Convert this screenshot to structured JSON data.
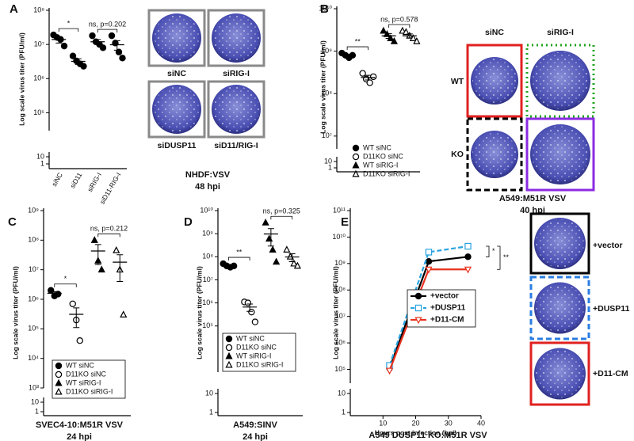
{
  "chart_data": [
    {
      "panel": "A",
      "type": "dot",
      "ylabel": "Log scale virus titer (PFU/ml)",
      "categories": [
        "siNC",
        "siD11",
        "siRIG-I",
        "siD11-RIG-I"
      ],
      "series": [
        {
          "marker": "circle",
          "filled": true,
          "color": "#000000",
          "values": [
            19000000,
            16000000,
            14000000,
            9000000
          ],
          "mean": 14000000,
          "error": 3000000
        },
        {
          "marker": "circle",
          "filled": true,
          "color": "#000000",
          "values": [
            4600000,
            3300000,
            2700000,
            2300000
          ],
          "mean": 3200000,
          "error": 600000
        },
        {
          "marker": "circle",
          "filled": true,
          "color": "#000000",
          "values": [
            18000000,
            12000000,
            10000000,
            8000000
          ],
          "mean": 12000000,
          "error": 2000000
        },
        {
          "marker": "circle",
          "filled": true,
          "color": "#000000",
          "values": [
            18000000,
            11000000,
            6000000,
            4000000
          ],
          "mean": 9800000,
          "error": 3000000
        }
      ],
      "annotations": [
        "*",
        "ns, p=0.202"
      ],
      "ylim": [
        30000,
        100000000
      ],
      "yticks": [
        {
          "value": 100000000,
          "label": "10⁸"
        },
        {
          "value": 10000000,
          "label": "10⁷"
        },
        {
          "value": 1000000,
          "label": "10⁶"
        },
        {
          "value": 100000,
          "label": "10⁵"
        },
        10,
        1
      ],
      "plate_labels": [
        "siNC",
        "siRIG-I",
        "siDUSP11",
        "siD11/RIG-I"
      ],
      "caption": [
        "NHDF:VSV",
        "48 hpi"
      ]
    },
    {
      "panel": "B",
      "type": "dot",
      "ylabel": "Log scale virus titer (PFU/ml)",
      "series": [
        {
          "name": "WT siNC",
          "marker": "circle",
          "filled": true,
          "color": "#000000",
          "values": [
            900000000,
            800000000,
            700000000,
            800000000
          ],
          "mean": 800000000,
          "error": 50000000
        },
        {
          "name": "D11KO siNC",
          "marker": "circle",
          "filled": false,
          "color": "#000000",
          "values": [
            300000000,
            220000000,
            180000000,
            250000000
          ],
          "mean": 240000000,
          "error": 30000000
        },
        {
          "name": "WT siRIG-I",
          "marker": "triangle",
          "filled": true,
          "color": "#000000",
          "values": [
            3000000000,
            2500000000,
            2000000000,
            1700000000
          ],
          "mean": 2300000000,
          "error": 300000000
        },
        {
          "name": "D11KO siRIG-I",
          "marker": "triangle",
          "filled": false,
          "color": "#000000",
          "values": [
            3000000000,
            2800000000,
            2300000000,
            2000000000,
            1700000000
          ],
          "mean": 2300000000,
          "error": 250000000
        }
      ],
      "annotations": [
        "**",
        "ns, p=0.578"
      ],
      "ylim": [
        5000000,
        10000000000
      ],
      "yticks": [
        {
          "value": 10000000000,
          "label": "10¹⁰"
        },
        {
          "value": 1000000000,
          "label": "10⁹"
        },
        {
          "value": 100000000,
          "label": "10⁸"
        },
        {
          "value": 10000000,
          "label": "10⁷"
        },
        10,
        1
      ],
      "plate_labels": [
        "siNC",
        "siRIG-I",
        "WT",
        "KO"
      ],
      "caption": [
        "A549:M51R VSV",
        "40 hpi"
      ]
    },
    {
      "panel": "C",
      "type": "dot",
      "ylabel": "Log scale virus titer (PFU/ml)",
      "series": [
        {
          "name": "WT siNC",
          "marker": "circle",
          "filled": true,
          "color": "#000000",
          "values": [
            2000000,
            1300000,
            1500000
          ],
          "mean": 1600000,
          "error": 200000
        },
        {
          "name": "D11KO siNC",
          "marker": "circle",
          "filled": false,
          "color": "#000000",
          "values": [
            700000,
            200000,
            40000
          ],
          "mean": 310000,
          "error": 200000
        },
        {
          "name": "WT siRIG-I",
          "marker": "triangle",
          "filled": true,
          "color": "#000000",
          "values": [
            100000000,
            20000000,
            10000000
          ],
          "mean": 43000000,
          "error": 28000000
        },
        {
          "name": "D11KO siRIG-I",
          "marker": "triangle",
          "filled": false,
          "color": "#000000",
          "values": [
            45000000,
            10000000,
            300000
          ],
          "mean": 18000000,
          "error": 14000000
        }
      ],
      "annotations": [
        "*",
        "ns, p=0.212"
      ],
      "ylim": [
        1000,
        1000000000
      ],
      "yticks": [
        {
          "value": 1000000000,
          "label": "10⁹"
        },
        {
          "value": 100000000,
          "label": "10⁸"
        },
        {
          "value": 10000000,
          "label": "10⁷"
        },
        {
          "value": 1000000,
          "label": "10⁶"
        },
        {
          "value": 100000,
          "label": "10⁵"
        },
        {
          "value": 10000,
          "label": "10⁴"
        },
        {
          "value": 1000,
          "label": "10³"
        },
        10,
        1
      ],
      "caption": [
        "SVEC4-10:M51R VSV",
        "24 hpi"
      ]
    },
    {
      "panel": "D",
      "type": "dot",
      "ylabel": "Log scale virus titer (PFU/ml)",
      "series": [
        {
          "name": "WT siNC",
          "marker": "circle",
          "filled": true,
          "color": "#000000",
          "values": [
            50000000,
            40000000,
            35000000,
            40000000
          ],
          "mean": 41000000,
          "error": 3000000
        },
        {
          "name": "D11KO siNC",
          "marker": "circle",
          "filled": false,
          "color": "#000000",
          "values": [
            1100000,
            1000000,
            400000,
            150000
          ],
          "mean": 660000,
          "error": 230000
        },
        {
          "name": "WT siRIG-I",
          "marker": "triangle",
          "filled": true,
          "color": "#000000",
          "values": [
            3000000000,
            600000000,
            200000000,
            60000000
          ],
          "mean": 970000000,
          "error": 680000000
        },
        {
          "name": "D11KO siRIG-I",
          "marker": "triangle",
          "filled": false,
          "color": "#000000",
          "values": [
            200000000,
            100000000,
            50000000,
            40000000
          ],
          "mean": 98000000,
          "error": 37000000
        }
      ],
      "annotations": [
        "**",
        "ns, p=0.325"
      ],
      "ylim": [
        1000,
        10000000000
      ],
      "yticks": [
        {
          "value": 10000000000,
          "label": "10¹⁰"
        },
        {
          "value": 1000000000,
          "label": "10⁹"
        },
        {
          "value": 100000000,
          "label": "10⁸"
        },
        {
          "value": 10000000,
          "label": "10⁷"
        },
        {
          "value": 1000000,
          "label": "10⁶"
        },
        {
          "value": 100000,
          "label": "10⁵"
        },
        10,
        1
      ],
      "caption": [
        "A549:SINV",
        "24 hpi"
      ]
    },
    {
      "panel": "E",
      "type": "line",
      "ylabel": "Log scale virus titer (PFU/ml)",
      "xlabel": "Hours post infection (hpi)",
      "x": [
        12,
        24,
        36
      ],
      "series": [
        {
          "name": "+vector",
          "marker": "circle",
          "filled": true,
          "dashed": false,
          "color": "#000000",
          "values": [
            110000,
            1200000000,
            1800000000
          ]
        },
        {
          "name": "+DUSP11",
          "marker": "square",
          "filled": false,
          "dashed": true,
          "color": "#29a3e0",
          "values": [
            140000,
            2700000000,
            4500000000
          ]
        },
        {
          "name": "+D11-CM",
          "marker": "triangle-down",
          "filled": false,
          "dashed": false,
          "color": "#e8321f",
          "values": [
            90000,
            600000000,
            600000000
          ]
        }
      ],
      "annotations": [
        "*",
        "**"
      ],
      "xlim": [
        0,
        40
      ],
      "xticks": [
        10,
        20,
        30,
        40
      ],
      "ylim": [
        30000,
        100000000000
      ],
      "yticks": [
        {
          "value": 100000000000,
          "label": "10¹¹"
        },
        {
          "value": 10000000000,
          "label": "10¹⁰"
        },
        {
          "value": 1000000000,
          "label": "10⁹"
        },
        {
          "value": 100000000,
          "label": "10⁸"
        },
        {
          "value": 10000000,
          "label": "10⁷"
        },
        {
          "value": 1000000,
          "label": "10⁶"
        },
        {
          "value": 100000,
          "label": "10⁵"
        },
        10,
        1
      ],
      "plate_labels": [
        "+vector",
        "+DUSP11",
        "+D11-CM"
      ],
      "caption": [
        "A549 DUSP11 KO:M51R VSV"
      ]
    }
  ]
}
